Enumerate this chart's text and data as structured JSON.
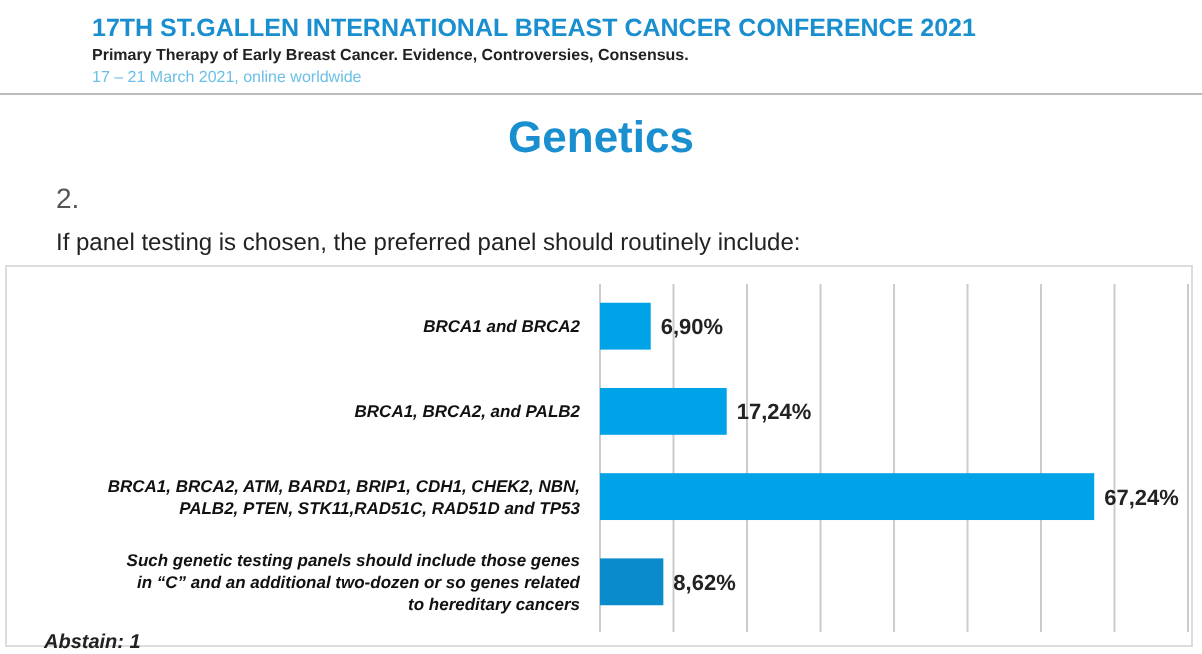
{
  "chart_data": {
    "type": "bar",
    "orientation": "horizontal",
    "title": "Genetics",
    "subtitle": "If panel testing is chosen, the preferred panel should routinely include:",
    "categories": [
      "BRCA1 and BRCA2",
      "BRCA1, BRCA2, and PALB2",
      "BRCA1, BRCA2, ATM, BARD1, BRIP1, CDH1, CHEK2, NBN, PALB2, PTEN, STK11,RAD51C, RAD51D and TP53",
      "Such genetic testing panels should include those genes in “C” and an additional two-dozen or so genes related to hereditary cancers"
    ],
    "values": [
      6.9,
      17.24,
      67.24,
      8.62
    ],
    "value_labels": [
      "6,90%",
      "17,24%",
      "67,24%",
      "8,62%"
    ],
    "colors": [
      "#00a2e8",
      "#00a2e8",
      "#00a2e8",
      "#0a8ccc"
    ],
    "xlim": [
      0,
      80
    ],
    "xticks": [
      {
        "value": 0,
        "label": null
      },
      {
        "value": 10,
        "label": null
      },
      {
        "value": 20,
        "label": null
      },
      {
        "value": 30,
        "label": null
      },
      {
        "value": 40,
        "label": null
      },
      {
        "value": 50,
        "label": null
      },
      {
        "value": 60,
        "label": null
      },
      {
        "value": 70,
        "label": null
      },
      {
        "value": 80,
        "label": null
      }
    ],
    "tick_labels": "y",
    "grid": "x",
    "annotations": [
      "17TH ST.GALLEN INTERNATIONAL BREAST CANCER CONFERENCE 2021",
      "Primary Therapy of Early Breast Cancer. Evidence, Controversies, Consensus.",
      "17 – 21 March 2021, online worldwide",
      "2.",
      "Abstain: 1"
    ]
  }
}
